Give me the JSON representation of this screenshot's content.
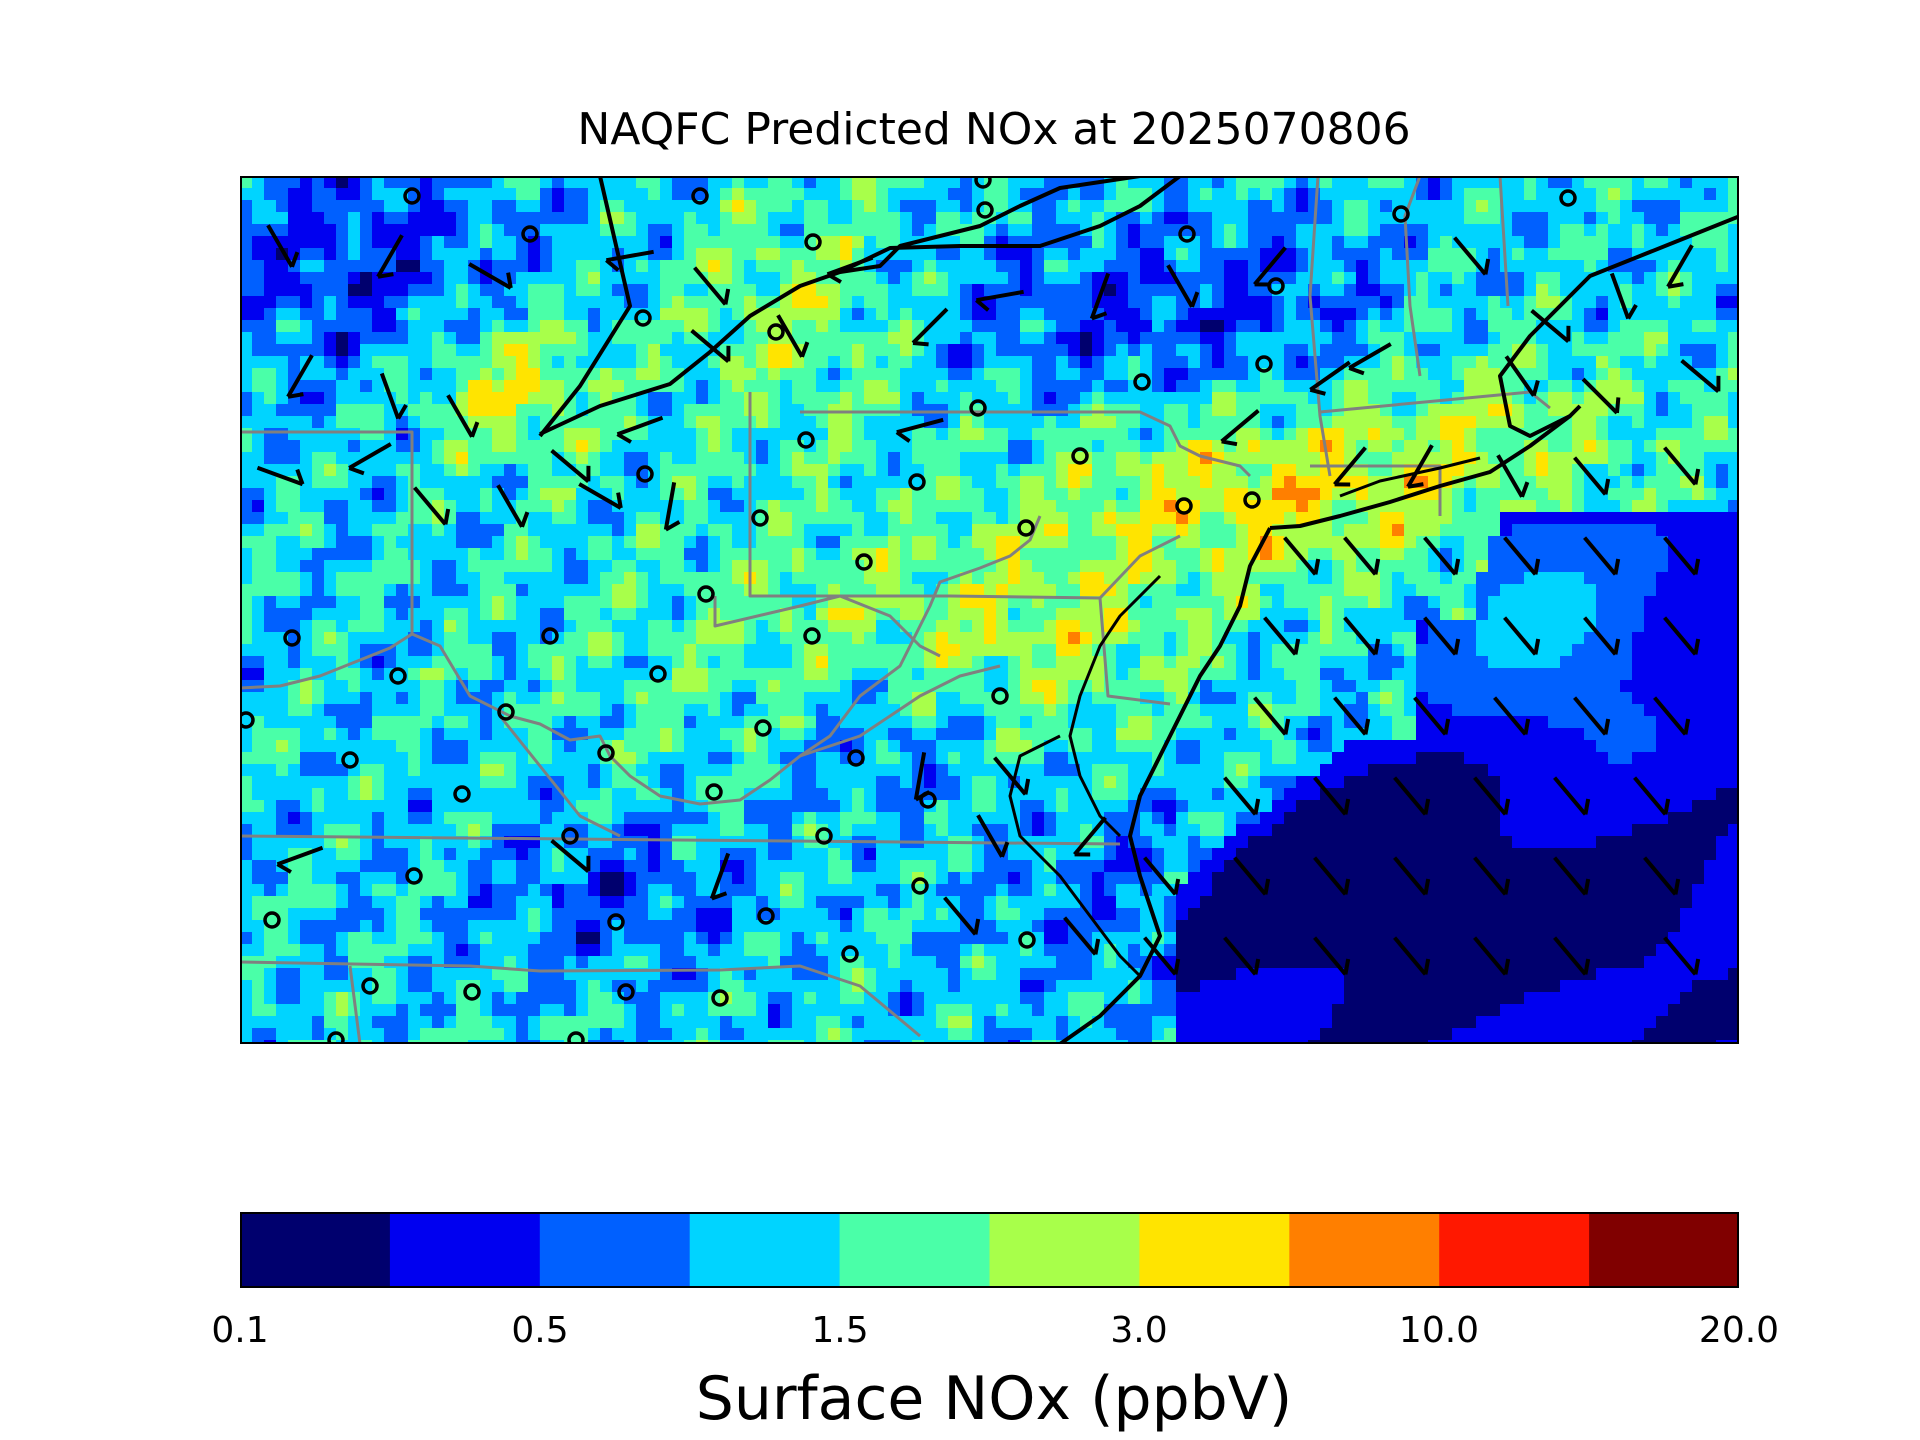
{
  "title": "NAQFC Predicted NOx at 2025070806",
  "colorbar": {
    "label": "Surface NOx (ppbV)",
    "colors": [
      "#00006e",
      "#0000f0",
      "#0060ff",
      "#00d4ff",
      "#4affa8",
      "#a8ff4a",
      "#ffe400",
      "#ff7f00",
      "#ff1800",
      "#800000"
    ],
    "tick_labels": [
      "0.1",
      "0.5",
      "1.5",
      "3.0",
      "10.0",
      "20.0"
    ]
  },
  "map": {
    "border_color": "#808080",
    "coast_color": "#000000",
    "marker": "station-circle",
    "wind_symbol": "wind-barb"
  }
}
